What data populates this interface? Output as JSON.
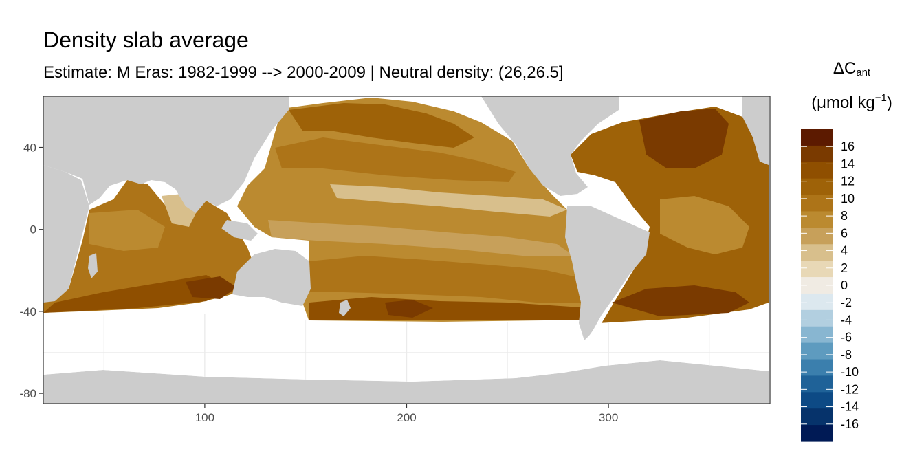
{
  "title": "Density slab average",
  "subtitle": "Estimate: M Eras: 1982-1999 --> 2000-2009 | Neutral density: (26,26.5]",
  "legend": {
    "title_main": "ΔC",
    "title_sub": "ant",
    "unit_open": "(μmol kg",
    "unit_sup": "−1",
    "unit_close": ")",
    "labels": [
      "16",
      "14",
      "12",
      "10",
      "8",
      "6",
      "4",
      "2",
      "0",
      "-2",
      "-4",
      "-6",
      "-8",
      "-10",
      "-12",
      "-14",
      "-16"
    ],
    "colors": [
      "#5c1a00",
      "#7a3a00",
      "#8f4f00",
      "#9e6208",
      "#ad7418",
      "#bb8a30",
      "#c7a05a",
      "#d8bf8c",
      "#e8d8b6",
      "#f0ebe3",
      "#dce8ef",
      "#b2cfe0",
      "#88b6d1",
      "#5e9bbf",
      "#3b7fad",
      "#1f6298",
      "#0d4a85",
      "#06336b",
      "#001a55"
    ]
  },
  "chart_data": {
    "type": "heatmap",
    "title": "Density slab average",
    "subtitle": "Estimate: M Eras: 1982-1999 --> 2000-2009 | Neutral density: (26,26.5]",
    "xlabel": "",
    "ylabel": "",
    "xlim": [
      20,
      380
    ],
    "ylim": [
      -85,
      65
    ],
    "x_ticks": [
      100,
      200,
      300
    ],
    "y_ticks": [
      40,
      0,
      -40,
      -80
    ],
    "grid": true,
    "colorbar": {
      "title": "ΔCant (μmol kg−1)",
      "breaks": [
        16,
        14,
        12,
        10,
        8,
        6,
        4,
        2,
        0,
        -2,
        -4,
        -6,
        -8,
        -10,
        -12,
        -14,
        -16
      ],
      "range": [
        -18,
        18
      ]
    },
    "colors": {
      "land": "#cccccc",
      "no_data": "#ffffff",
      "panel_border": "#333333",
      "grid": "#ebebeb"
    }
  }
}
